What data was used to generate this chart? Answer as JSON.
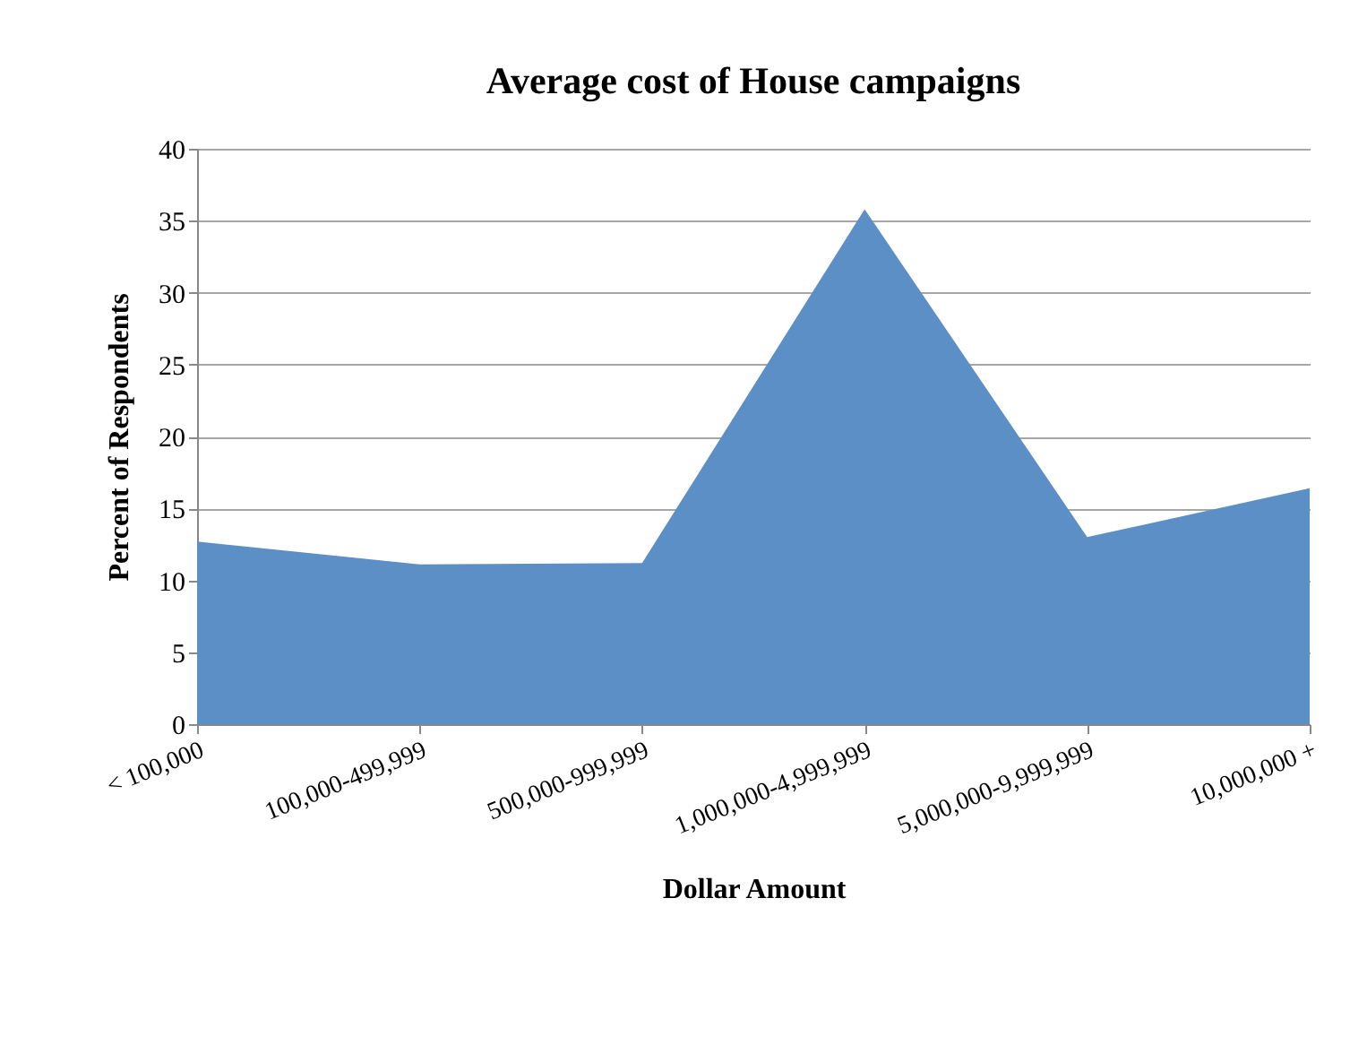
{
  "chart_data": {
    "type": "area",
    "title": "Average cost of House campaigns",
    "xlabel": "Dollar Amount",
    "ylabel": "Percent of Respondents",
    "categories": [
      "< 100,000",
      "100,000-499,999",
      "500,000-999,999",
      "1,000,000-4,999,999",
      "5,000,000-9,999,999",
      "10,000,000 +"
    ],
    "series": [
      {
        "color": "#5b8fc6",
        "values": [
          12.7,
          11.1,
          11.2,
          35.8,
          13.0,
          16.4
        ]
      }
    ],
    "ylim": [
      0,
      40
    ],
    "yticks": [
      0,
      5,
      10,
      15,
      20,
      25,
      30,
      35,
      40
    ],
    "grid": "y"
  }
}
